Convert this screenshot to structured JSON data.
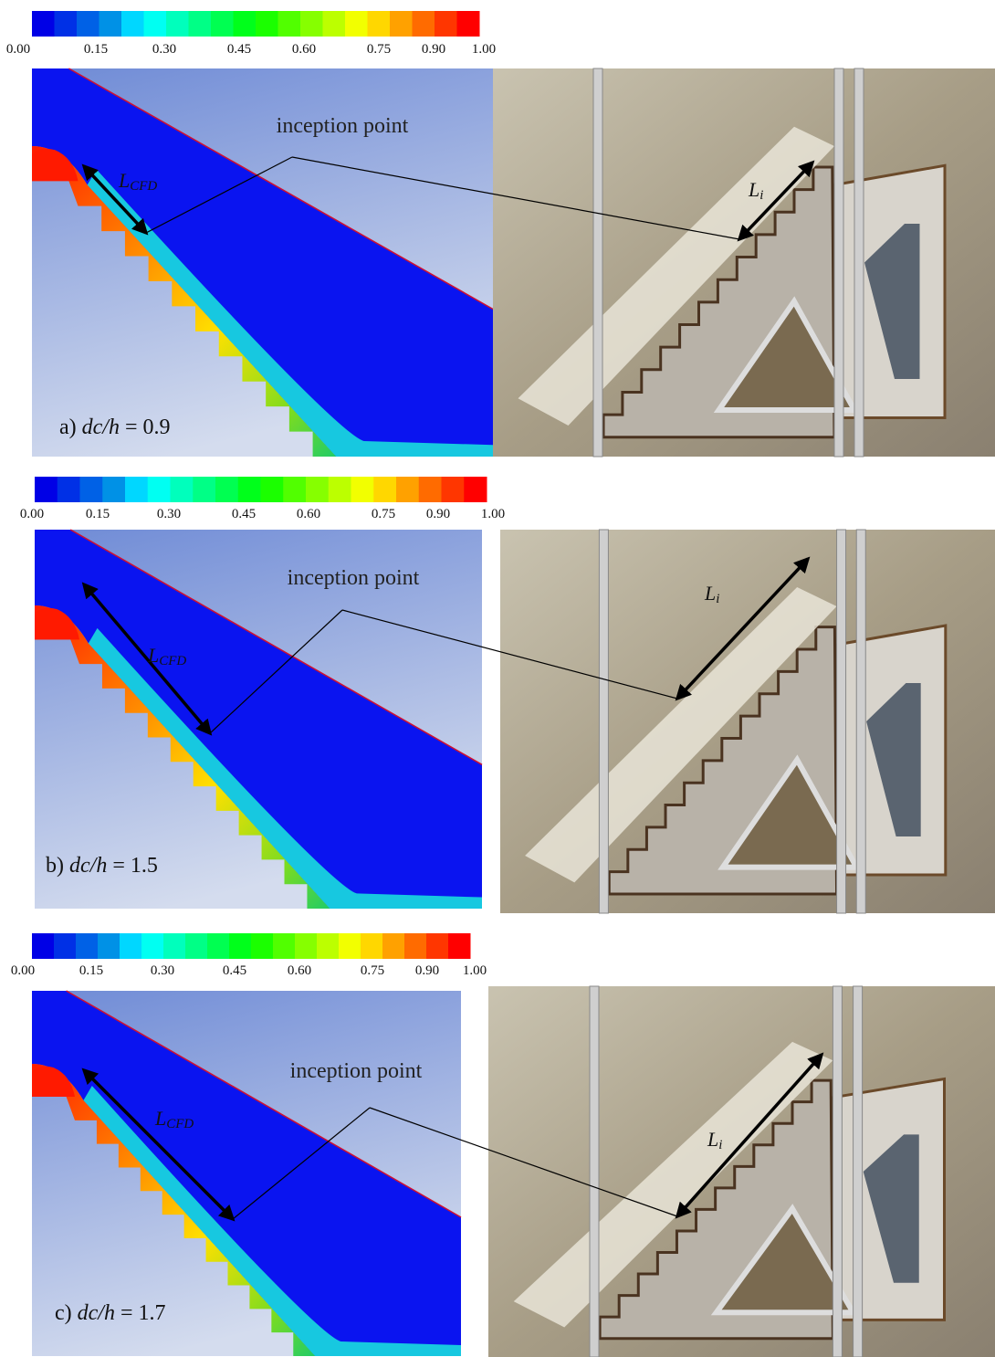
{
  "panels": [
    {
      "colorbar_ticks": [
        "0.00",
        "0.15",
        "0.30",
        "0.45",
        "0.60",
        "0.75",
        "0.90",
        "1.00"
      ],
      "cfd": {
        "annotation": "inception point",
        "length_symbol": "L",
        "length_subscript": "CFD",
        "caption": {
          "label": "a)",
          "ratio": "dc/h",
          "value": "= 0.9"
        }
      },
      "photo": {
        "length_symbol": "L",
        "length_subscript": "i"
      }
    },
    {
      "colorbar_ticks": [
        "0.00",
        "0.15",
        "0.30",
        "0.45",
        "0.60",
        "0.75",
        "0.90",
        "1.00"
      ],
      "cfd": {
        "annotation": "inception point",
        "length_symbol": "L",
        "length_subscript": "CFD",
        "caption": {
          "label": "b)",
          "ratio": "dc/h",
          "value": "= 1.5"
        }
      },
      "photo": {
        "length_symbol": "L",
        "length_subscript": "i"
      }
    },
    {
      "colorbar_ticks": [
        "0.00",
        "0.15",
        "0.30",
        "0.45",
        "0.60",
        "0.75",
        "0.90",
        "1.00"
      ],
      "cfd": {
        "annotation": "inception point",
        "length_symbol": "L",
        "length_subscript": "CFD",
        "caption": {
          "label": "c)",
          "ratio": "dc/h",
          "value": "= 1.7"
        }
      },
      "photo": {
        "length_symbol": "L",
        "length_subscript": "i"
      }
    }
  ]
}
